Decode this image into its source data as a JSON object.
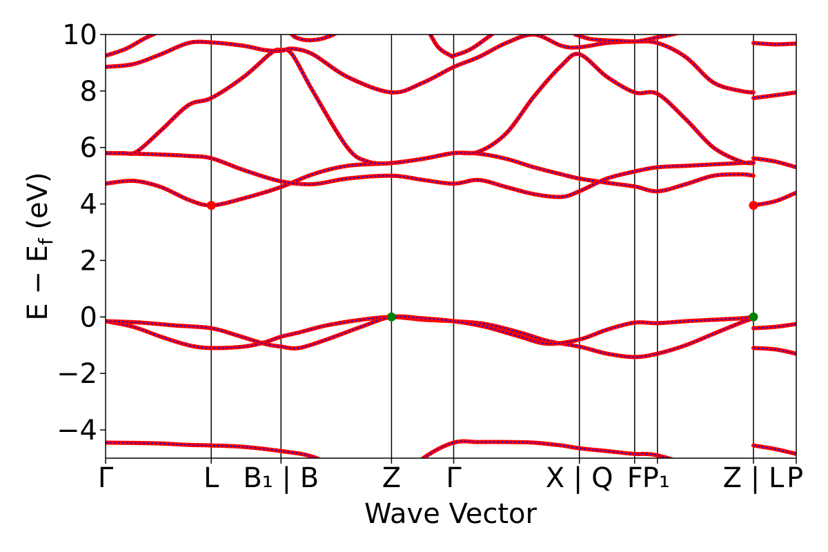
{
  "chart_data": {
    "type": "line",
    "title": "",
    "xlabel": "Wave Vector",
    "ylabel": "E − E_f (eV)",
    "ylabel_parts": {
      "main": "E − E",
      "sub": "f",
      "unit": " (eV)"
    },
    "xlim": [
      0,
      1000
    ],
    "ylim": [
      -5,
      10
    ],
    "yticks": [
      -4,
      -2,
      0,
      2,
      4,
      6,
      8,
      10
    ],
    "ytick_labels": [
      "−4",
      "−2",
      "0",
      "2",
      "4",
      "6",
      "8",
      "10"
    ],
    "grid": false,
    "colors": {
      "dft": "#ff0000",
      "wannier": "#0000ff",
      "cbm": "#ff0000",
      "vbm": "#008000",
      "kline": "#000000"
    },
    "kpoints": [
      {
        "x": 0,
        "label": "Γ"
      },
      {
        "x": 153,
        "label": "L"
      },
      {
        "x": 254,
        "label": "B₁ | B"
      },
      {
        "x": 414,
        "label": "Z"
      },
      {
        "x": 504,
        "label": "Γ"
      },
      {
        "x": 686,
        "label": "X | Q"
      },
      {
        "x": 766,
        "label": "F"
      },
      {
        "x": 799,
        "label": "P₁"
      },
      {
        "x": 938,
        "label": "Z | L"
      },
      {
        "x": 1000,
        "label": "P"
      }
    ],
    "special_points": [
      {
        "name": "CBM",
        "x": 153,
        "y": 3.95,
        "color": "#ff0000"
      },
      {
        "name": "CBM",
        "x": 938,
        "y": 3.95,
        "color": "#ff0000"
      },
      {
        "name": "VBM",
        "x": 414,
        "y": 0.0,
        "color": "#008000"
      },
      {
        "name": "VBM",
        "x": 938,
        "y": 0.0,
        "color": "#008000"
      }
    ],
    "bands": [
      {
        "x": [
          0,
          40,
          80,
          120,
          153,
          200,
          254,
          300,
          350,
          414,
          460,
          504,
          540,
          580,
          620,
          660,
          686,
          726,
          766,
          780,
          799,
          840,
          880,
          938
        ],
        "y": [
          -4.45,
          -4.46,
          -4.48,
          -4.53,
          -4.55,
          -4.6,
          -4.75,
          -4.95,
          -5.5,
          -6.0,
          -5.0,
          -4.45,
          -4.43,
          -4.43,
          -4.45,
          -4.55,
          -4.65,
          -4.75,
          -4.85,
          -4.85,
          -4.9,
          -5.2,
          -5.6,
          -6.0
        ]
      },
      {
        "x": [
          938,
          970,
          1000
        ],
        "y": [
          -4.55,
          -4.68,
          -4.85
        ]
      },
      {
        "x": [
          0,
          40,
          80,
          120,
          153,
          200,
          230,
          254,
          280,
          320,
          370,
          414,
          460,
          504,
          550,
          600,
          640,
          686,
          726,
          766,
          799,
          840,
          880,
          920,
          938
        ],
        "y": [
          -0.15,
          -0.35,
          -0.7,
          -1.0,
          -1.1,
          -1.05,
          -0.9,
          -0.7,
          -0.55,
          -0.3,
          -0.1,
          0.0,
          -0.1,
          -0.15,
          -0.25,
          -0.55,
          -0.85,
          -1.05,
          -1.3,
          -1.42,
          -1.3,
          -1.0,
          -0.6,
          -0.2,
          -0.05
        ]
      },
      {
        "x": [
          0,
          50,
          100,
          153,
          190,
          230,
          254,
          280,
          320,
          370,
          414,
          460,
          504,
          550,
          600,
          640,
          686,
          726,
          766,
          799,
          840,
          880,
          920,
          938
        ],
        "y": [
          -0.15,
          -0.2,
          -0.3,
          -0.4,
          -0.65,
          -0.95,
          -1.05,
          -1.1,
          -0.8,
          -0.35,
          0.0,
          -0.05,
          -0.15,
          -0.35,
          -0.7,
          -0.95,
          -0.8,
          -0.45,
          -0.2,
          -0.22,
          -0.15,
          -0.1,
          -0.05,
          0.0
        ]
      },
      {
        "x": [
          938,
          970,
          1000
        ],
        "y": [
          -0.4,
          -0.35,
          -0.25
        ]
      },
      {
        "x": [
          938,
          970,
          1000
        ],
        "y": [
          -1.1,
          -1.15,
          -1.3
        ]
      },
      {
        "x": [
          0,
          40,
          80,
          120,
          153,
          200,
          254,
          300,
          350,
          414,
          460,
          504,
          540,
          580,
          620,
          660,
          686,
          726,
          766,
          799,
          840,
          880,
          920,
          938
        ],
        "y": [
          4.72,
          4.82,
          4.6,
          4.15,
          3.95,
          4.2,
          4.6,
          5.05,
          5.35,
          5.45,
          5.6,
          5.8,
          5.78,
          5.6,
          5.3,
          5.05,
          4.9,
          4.75,
          4.62,
          4.45,
          4.7,
          5.0,
          5.05,
          5.0
        ]
      },
      {
        "x": [
          0,
          40,
          80,
          120,
          153,
          200,
          254,
          300,
          350,
          414,
          460,
          504,
          540,
          580,
          620,
          660,
          686,
          726,
          766,
          799,
          840,
          880,
          920,
          938
        ],
        "y": [
          5.8,
          5.78,
          5.75,
          5.7,
          5.62,
          5.2,
          4.8,
          4.7,
          4.9,
          5.0,
          4.85,
          4.72,
          4.85,
          4.6,
          4.35,
          4.25,
          4.45,
          4.9,
          5.15,
          5.3,
          5.35,
          5.4,
          5.45,
          5.47
        ]
      },
      {
        "x": [
          938,
          970,
          1000
        ],
        "y": [
          3.95,
          4.1,
          4.4
        ]
      },
      {
        "x": [
          938,
          970,
          1000
        ],
        "y": [
          5.62,
          5.5,
          5.3
        ]
      },
      {
        "x": [
          0,
          25,
          45,
          80,
          120,
          153,
          200,
          240,
          254,
          270,
          300,
          350,
          380,
          414,
          460,
          504,
          540,
          580,
          620,
          660,
          686,
          726,
          766,
          799,
          840,
          880,
          920,
          938
        ],
        "y": [
          5.8,
          5.8,
          5.85,
          6.6,
          7.5,
          7.75,
          8.5,
          9.35,
          9.45,
          9.3,
          8.0,
          6.0,
          5.5,
          5.45,
          5.6,
          5.8,
          5.85,
          6.5,
          7.8,
          8.9,
          9.3,
          8.5,
          7.95,
          7.9,
          7.0,
          6.0,
          5.5,
          5.45
        ]
      },
      {
        "x": [
          0,
          40,
          80,
          120,
          153,
          200,
          230,
          254,
          270,
          300,
          350,
          414,
          460,
          504,
          540,
          580,
          620,
          660,
          686,
          726,
          766,
          799,
          840,
          880,
          920,
          938
        ],
        "y": [
          8.85,
          8.95,
          9.3,
          9.7,
          9.72,
          9.6,
          9.45,
          9.42,
          9.5,
          9.3,
          8.5,
          7.95,
          8.3,
          8.85,
          9.2,
          9.7,
          10.0,
          9.6,
          9.55,
          9.7,
          9.75,
          9.7,
          9.2,
          8.3,
          8.0,
          7.95
        ]
      },
      {
        "x": [
          0,
          30,
          60,
          100,
          153,
          200,
          254,
          275,
          300,
          330,
          360
        ],
        "y": [
          9.25,
          9.5,
          9.9,
          10.3,
          10.5,
          10.4,
          10.3,
          9.9,
          9.8,
          10.0,
          10.5
        ]
      },
      {
        "x": [
          460,
          480,
          500,
          504,
          530,
          570
        ],
        "y": [
          10.5,
          9.6,
          9.25,
          9.25,
          9.5,
          10.2
        ]
      },
      {
        "x": [
          680,
          700,
          720,
          740,
          766,
          780,
          799,
          820,
          850
        ],
        "y": [
          10.0,
          9.85,
          9.8,
          9.78,
          9.75,
          9.8,
          9.9,
          10.0,
          10.2
        ]
      },
      {
        "x": [
          938,
          970,
          1000
        ],
        "y": [
          9.7,
          9.65,
          9.68
        ]
      },
      {
        "x": [
          938,
          970,
          1000
        ],
        "y": [
          7.75,
          7.85,
          7.95
        ]
      }
    ]
  }
}
